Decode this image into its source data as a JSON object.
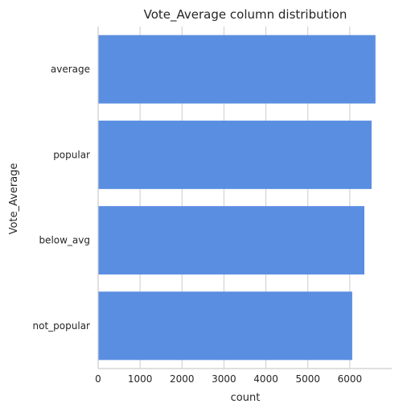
{
  "chart_data": {
    "type": "bar",
    "orientation": "horizontal",
    "title": "Vote_Average column distribution",
    "xlabel": "count",
    "ylabel": "Vote_Average",
    "categories": [
      "average",
      "popular",
      "below_avg",
      "not_popular"
    ],
    "values": [
      6613,
      6520,
      6348,
      6058
    ],
    "xlim": [
      0,
      7000
    ],
    "xticks": [
      "0",
      "1000",
      "2000",
      "3000",
      "4000",
      "5000",
      "6000"
    ],
    "grid": "vertical",
    "legend": "none",
    "bar_color": "#5a8ee1",
    "grid_color": "#cccccc",
    "text_color": "#262626"
  }
}
